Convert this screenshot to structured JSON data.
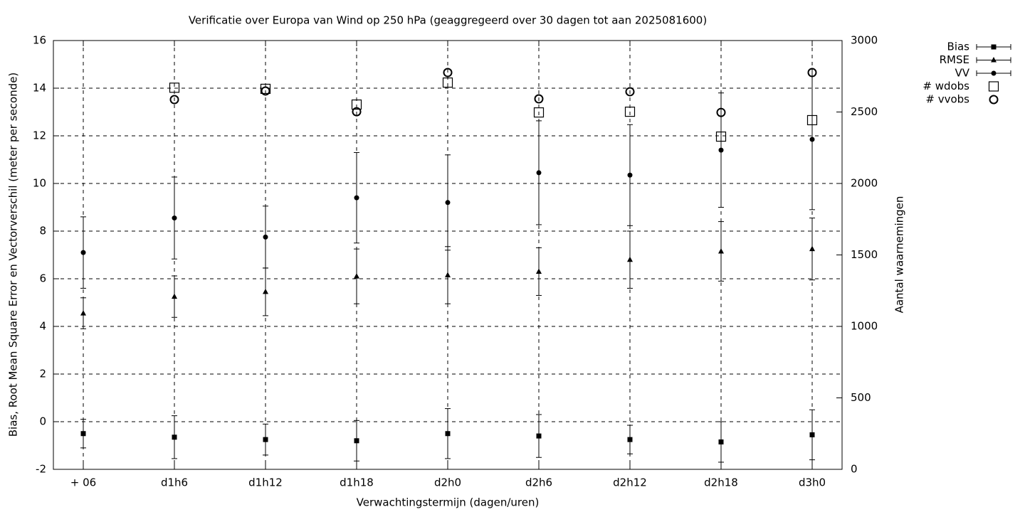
{
  "chart_data": {
    "type": "errorbar",
    "title": "Verificatie over Europa van Wind op 250 hPa (geaggregeerd over 30 dagen tot aan 2025081600)",
    "xlabel": "Verwachtingstermijn (dagen/uren)",
    "ylabel": "Bias, Root Mean Square Error en Vectorverschil (meter per seconde)",
    "y2label": "Aantal waarnemingen",
    "categories": [
      "+ 06",
      "d1h6",
      "d1h12",
      "d1h18",
      "d2h0",
      "d2h6",
      "d2h12",
      "d2h18",
      "d3h0"
    ],
    "ylim": [
      -2,
      16
    ],
    "yticks": [
      -2,
      0,
      2,
      4,
      6,
      8,
      10,
      12,
      14,
      16
    ],
    "y2lim": [
      0,
      3000
    ],
    "y2ticks": [
      0,
      500,
      1000,
      1500,
      2000,
      2500,
      3000
    ],
    "grid": true,
    "legend": "top-right",
    "series": [
      {
        "name": "Bias",
        "color": "#000000",
        "marker": "square",
        "errorbars": true,
        "values": [
          -0.5,
          -0.65,
          -0.75,
          -0.8,
          -0.5,
          -0.6,
          -0.75,
          -0.85,
          -0.55
        ],
        "errors": [
          0.6,
          0.9,
          0.65,
          0.85,
          1.05,
          0.9,
          0.6,
          0.85,
          1.05
        ]
      },
      {
        "name": "RMSE",
        "color": "#000000",
        "marker": "triangle",
        "errorbars": true,
        "values": [
          4.55,
          5.25,
          5.45,
          6.1,
          6.15,
          6.3,
          6.8,
          7.15,
          7.25
        ],
        "errors": [
          0.65,
          0.87,
          1.0,
          1.15,
          1.2,
          1.0,
          1.2,
          1.25,
          1.3
        ]
      },
      {
        "name": "VV",
        "color": "#000000",
        "marker": "circle",
        "errorbars": true,
        "values": [
          7.1,
          8.55,
          7.75,
          9.4,
          9.2,
          10.45,
          10.35,
          11.4,
          11.85
        ],
        "errors": [
          1.5,
          1.72,
          1.3,
          1.9,
          2.0,
          2.18,
          2.12,
          2.4,
          2.95
        ]
      },
      {
        "name": "# wdobs",
        "color": "#000000",
        "marker": "open-square",
        "axis": "y2",
        "values": [
          null,
          2670,
          2662,
          2552,
          2706,
          2497,
          2502,
          2328,
          2443
        ]
      },
      {
        "name": "# vvobs",
        "color": "#000000",
        "marker": "open-circle",
        "axis": "y2",
        "values": [
          null,
          2587,
          2647,
          2502,
          2776,
          2592,
          2642,
          2497,
          2776
        ]
      }
    ]
  }
}
